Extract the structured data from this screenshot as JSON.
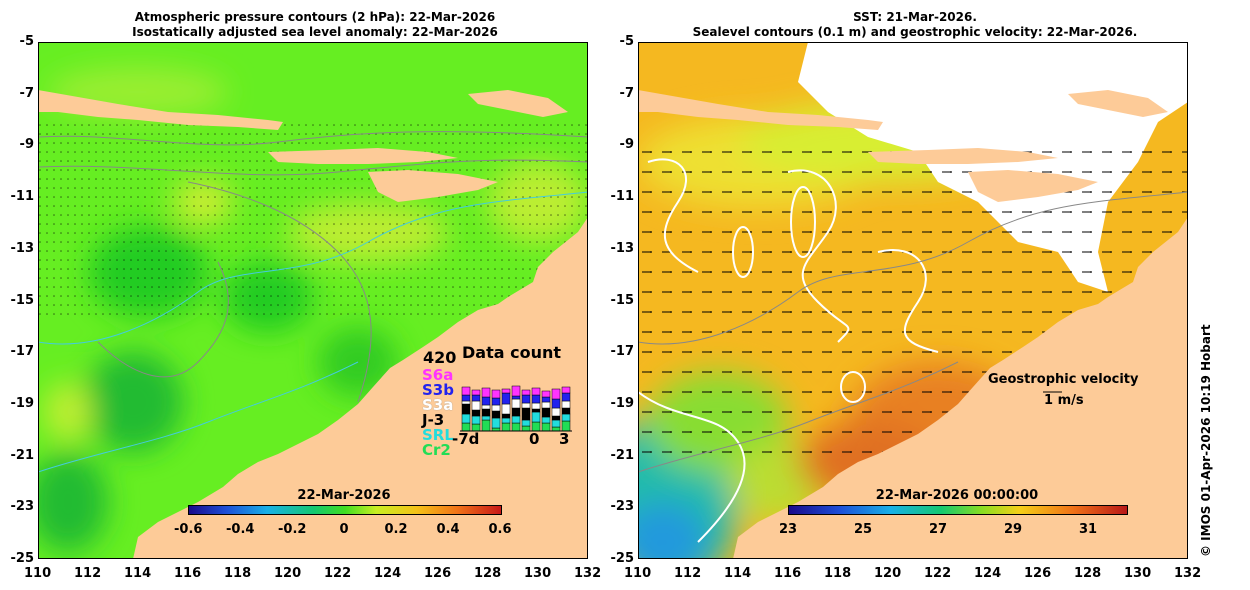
{
  "left_panel": {
    "title_line1": "Atmospheric pressure contours (2 hPa): 22-Mar-2026",
    "title_line2": "Isostatically adjusted sea level anomaly: 22-Mar-2026",
    "colorbar_date": "22-Mar-2026",
    "colorbar_ticks": [
      "-0.6",
      "-0.4",
      "-0.2",
      "0",
      "0.2",
      "0.4",
      "0.6"
    ],
    "data_count": {
      "title": "Data count",
      "max_label": "420",
      "missions": [
        {
          "name": "S6a",
          "color": "#ff33ff"
        },
        {
          "name": "S3b",
          "color": "#2222ee"
        },
        {
          "name": "S3a",
          "color": "#ffffff"
        },
        {
          "name": "J-3",
          "color": "#000000"
        },
        {
          "name": "SRL",
          "color": "#22dddd"
        },
        {
          "name": "Cr2",
          "color": "#22dd55"
        }
      ],
      "x_labels": [
        "-7d",
        "0",
        "3"
      ]
    }
  },
  "right_panel": {
    "title_line1": "SST: 21-Mar-2026.",
    "title_line2": "Sealevel contours (0.1 m) and geostrophic velocity: 22-Mar-2026.",
    "colorbar_date": "22-Mar-2026 00:00:00",
    "colorbar_ticks": [
      "23",
      "25",
      "27",
      "29",
      "31"
    ],
    "velocity_legend_title": "Geostrophic velocity",
    "velocity_legend_scale": "1 m/s"
  },
  "axes": {
    "lat_ticks": [
      "-5",
      "-7",
      "-9",
      "-11",
      "-13",
      "-15",
      "-17",
      "-19",
      "-21",
      "-23",
      "-25"
    ],
    "lon_ticks": [
      "110",
      "112",
      "114",
      "116",
      "118",
      "120",
      "122",
      "124",
      "126",
      "128",
      "130",
      "132"
    ]
  },
  "credit": "© IMOS 01-Apr-2026 10:19 Hobart",
  "colors": {
    "land": "#fdcb98",
    "sla_base": "#66ee22",
    "sst_base": "#f5b820"
  }
}
